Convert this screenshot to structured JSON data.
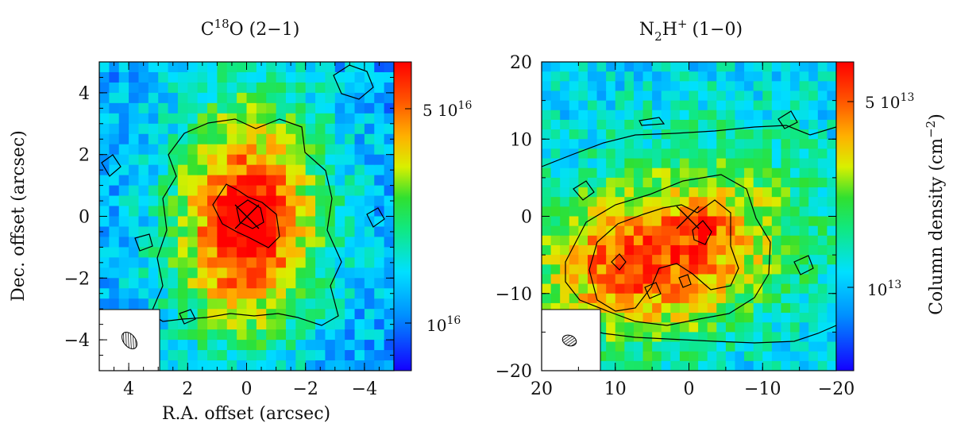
{
  "figure": {
    "panels": [
      {
        "title_base": "C",
        "title_sup": "18",
        "title_rest": "O (2−1)",
        "xlabel": "R.A. offset (arcsec)",
        "ylabel": "Dec. offset (arcsec)",
        "xticks": [
          "4",
          "2",
          "0",
          "−2",
          "−4"
        ],
        "yticks": [
          "4",
          "2",
          "0",
          "−2",
          "−4"
        ],
        "cbar_ticks": [
          {
            "base": "5 10",
            "sup": "16",
            "value": 5e+16
          },
          {
            "base": "10",
            "sup": "16",
            "value": 1e+16
          }
        ]
      },
      {
        "title_base": "N",
        "title_sub": "2",
        "title_mid": "H",
        "title_sup": "+",
        "title_rest": "(1−0)",
        "xticks": [
          "20",
          "10",
          "0",
          "−10",
          "−20"
        ],
        "yticks": [
          "20",
          "10",
          "0",
          "−10",
          "−20"
        ],
        "cbar_ticks": [
          {
            "base": "5 10",
            "sup": "13",
            "value": 50000000000000.0
          },
          {
            "base": "10",
            "sup": "13",
            "value": 10000000000000.0
          }
        ],
        "cbar_label_base": "Column density (cm",
        "cbar_label_sup": "−2",
        "cbar_label_end": ")"
      }
    ]
  },
  "chart_data": [
    {
      "type": "heatmap",
      "title": "C18O (2−1)",
      "xlabel": "R.A. offset (arcsec)",
      "ylabel": "Dec. offset (arcsec)",
      "xlim": [
        5,
        -5
      ],
      "ylim": [
        -5,
        5
      ],
      "colorbar": {
        "scale": "log",
        "range": [
          6000000000000000.0,
          7e+16
        ],
        "ticks": [
          1e+16,
          5e+16
        ],
        "colormap": "rainbow (blue-low, red-high)"
      },
      "peak_marker": {
        "x": 0,
        "y": 0,
        "symbol": "cross"
      },
      "emission_peak_estimate": {
        "x": 0.2,
        "y": 0.1,
        "value_approx": 7e+16
      },
      "beam_inset": "bottom-left",
      "contours": "black, 3 levels"
    },
    {
      "type": "heatmap",
      "title": "N2H+ (1−0)",
      "xlim": [
        20,
        -20
      ],
      "ylim": [
        -20,
        20
      ],
      "colorbar": {
        "scale": "log",
        "range": [
          6000000000000.0,
          70000000000000.0
        ],
        "ticks": [
          10000000000000.0,
          50000000000000.0
        ],
        "colormap": "rainbow (blue-low, red-high)",
        "label": "Column density (cm−2)"
      },
      "peak_marker": {
        "x": 0,
        "y": 0,
        "symbol": "cross"
      },
      "emission_peak_estimate": {
        "x": 5,
        "y": -5,
        "value_approx": 60000000000000.0
      },
      "beam_inset": "bottom-left",
      "contours": "black, 3 levels"
    }
  ]
}
